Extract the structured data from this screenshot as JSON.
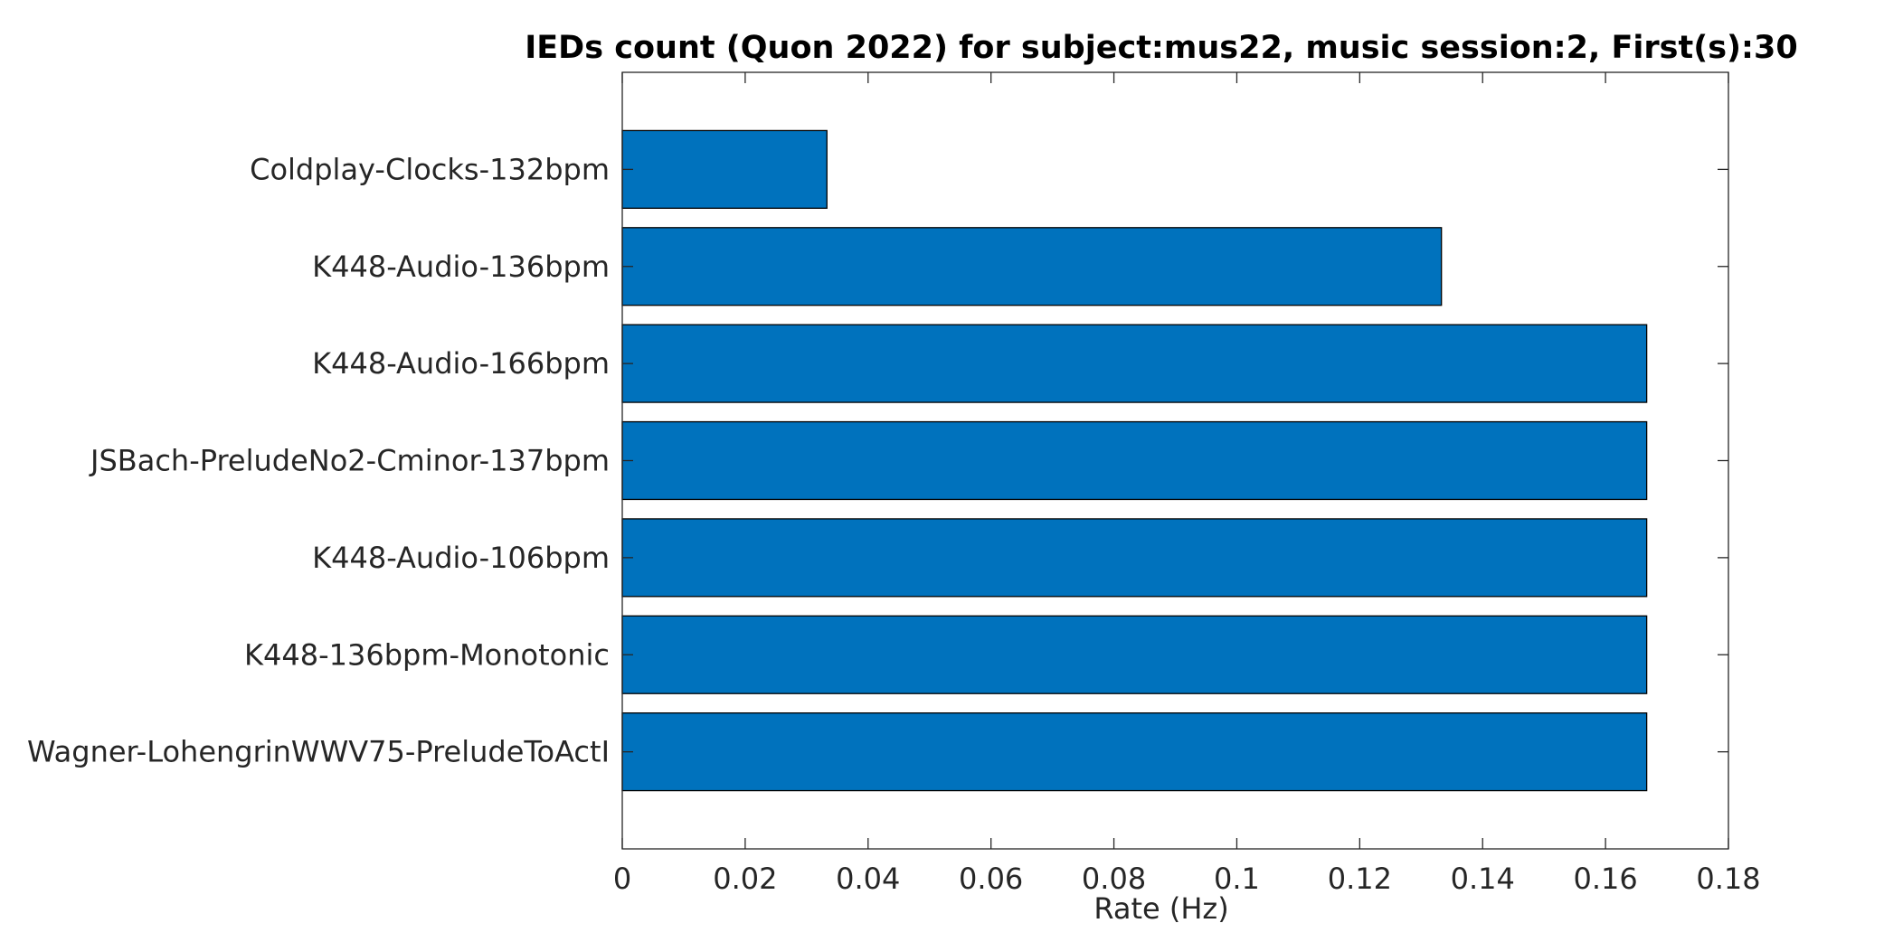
{
  "chart_data": {
    "type": "bar",
    "orientation": "horizontal",
    "title": "IEDs count (Quon 2022) for subject:mus22, music session:2, First(s):30",
    "xlabel": "Rate (Hz)",
    "ylabel": "",
    "categories": [
      "Coldplay-Clocks-132bpm",
      "K448-Audio-136bpm",
      "K448-Audio-166bpm",
      "JSBach-PreludeNo2-Cminor-137bpm",
      "K448-Audio-106bpm",
      "K448-136bpm-Monotonic",
      "Wagner-LohengrinWWV75-PreludeToActI"
    ],
    "values": [
      0.0333,
      0.1333,
      0.1667,
      0.1667,
      0.1667,
      0.1667,
      0.1667
    ],
    "xlim": [
      0,
      0.18
    ],
    "xticks": [
      "0",
      "0.02",
      "0.04",
      "0.06",
      "0.08",
      "0.1",
      "0.12",
      "0.14",
      "0.16",
      "0.18"
    ],
    "grid": false,
    "legend": "none",
    "colors": {
      "bar_fill": "#0072BD",
      "bar_edge": "#000000",
      "axis": "#262626",
      "title": "#000000"
    }
  }
}
